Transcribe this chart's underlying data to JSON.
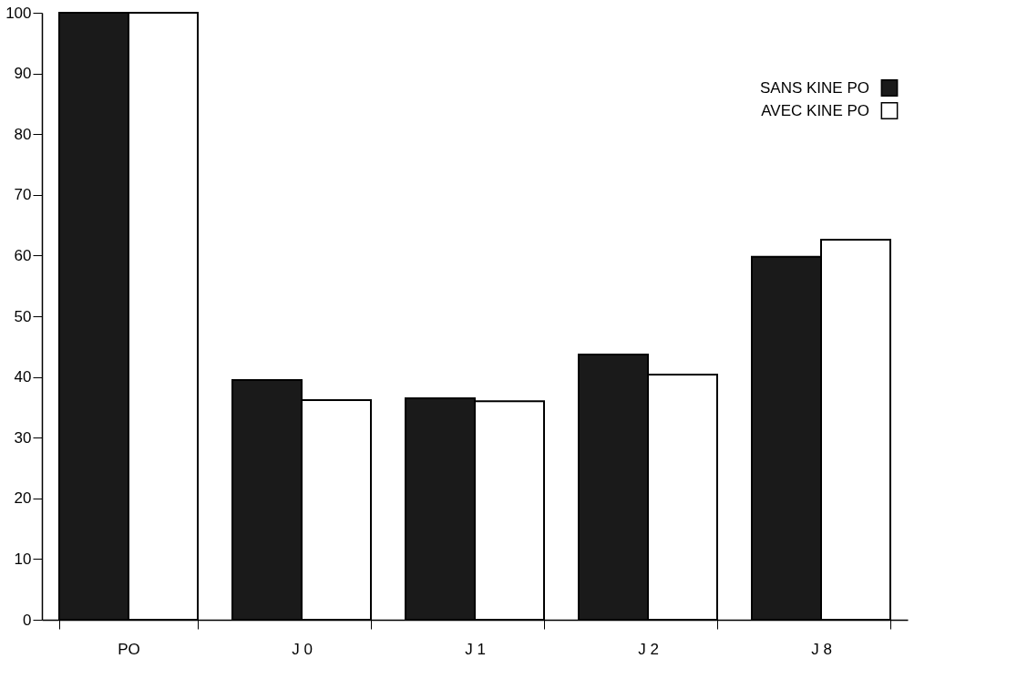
{
  "chart_data": {
    "type": "bar",
    "categories": [
      "PO",
      "J 0",
      "J 1",
      "J 2",
      "J 8"
    ],
    "series": [
      {
        "name": "SANS KINE PO",
        "color": "#1a1a1a",
        "values": [
          100,
          39.5,
          36.5,
          43.7,
          59.8
        ]
      },
      {
        "name": "AVEC KINE PO",
        "color": "#ffffff",
        "values": [
          100,
          36.2,
          36,
          40.4,
          62.6
        ]
      }
    ],
    "ylim": [
      0,
      100
    ],
    "yticks": [
      0,
      10,
      20,
      30,
      40,
      50,
      60,
      70,
      80,
      90,
      100
    ],
    "grid": false,
    "legend": "top right"
  }
}
